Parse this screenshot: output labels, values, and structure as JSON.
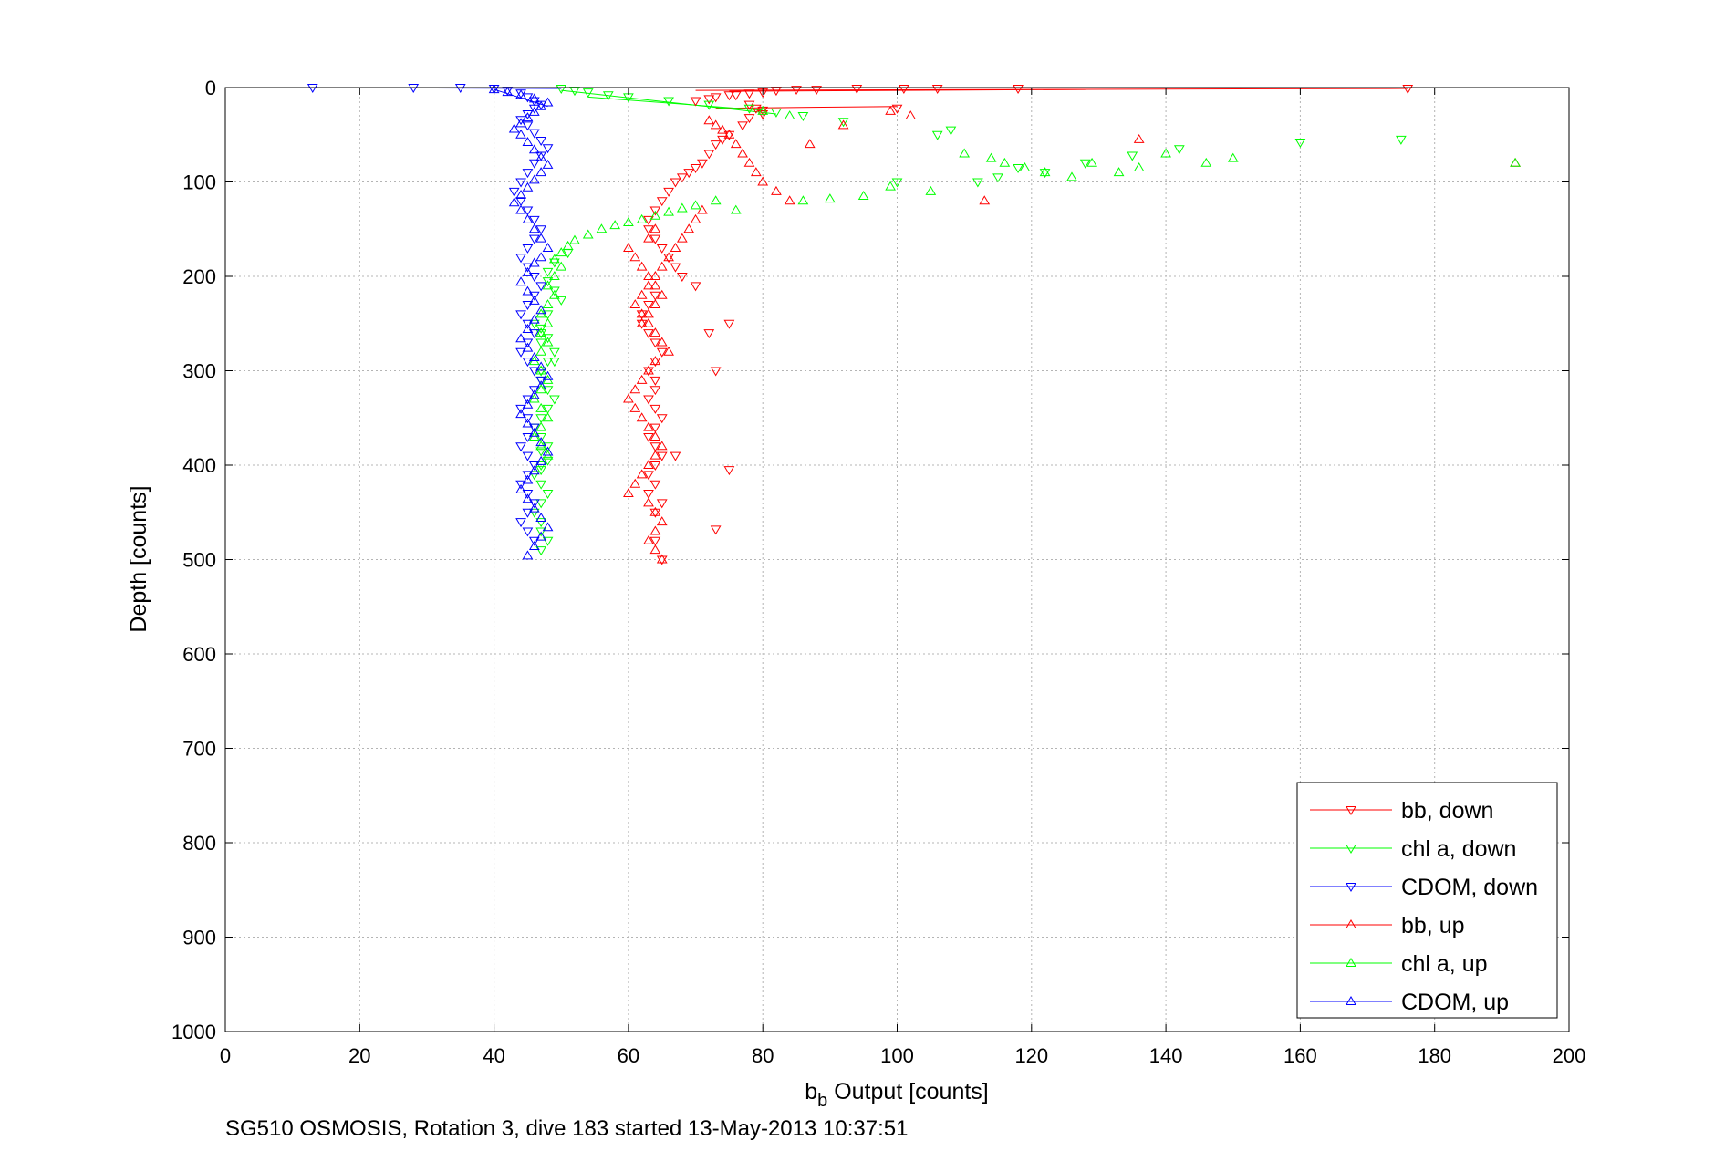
{
  "chart_data": {
    "type": "scatter",
    "title": "",
    "xlabel_base": "b",
    "xlabel_sub": "b",
    "xlabel_rest": " Output [counts]",
    "ylabel": "Depth [counts]",
    "caption": "SG510 OSMOSIS, Rotation 3, dive 183 started 13-May-2013 10:37:51",
    "xlim": [
      0,
      200
    ],
    "ylim": [
      0,
      1000
    ],
    "y_reversed": true,
    "grid": true,
    "x_ticks": [
      "0",
      "20",
      "40",
      "60",
      "80",
      "100",
      "120",
      "140",
      "160",
      "180",
      "200"
    ],
    "y_ticks": [
      "0",
      "100",
      "200",
      "300",
      "400",
      "500",
      "600",
      "700",
      "800",
      "900",
      "1000"
    ],
    "legend_position": "bottom-right",
    "series": [
      {
        "name": "bb, down",
        "color": "#ff0000",
        "marker": "triangle-down",
        "x": [
          176,
          118,
          106,
          101,
          94,
          88,
          85,
          82,
          80,
          78,
          76,
          75,
          73,
          72,
          70,
          78,
          79,
          80,
          100,
          80,
          78,
          77,
          75,
          74,
          73,
          72,
          71,
          70,
          69,
          68,
          67,
          66,
          65,
          64,
          63,
          63,
          64,
          65,
          66,
          67,
          68,
          70,
          64,
          63,
          62,
          62,
          63,
          64,
          65,
          64,
          63,
          75,
          72,
          64,
          64,
          63,
          64,
          73,
          65,
          64,
          63,
          64,
          65,
          64,
          63,
          67,
          64,
          63,
          75,
          65,
          64,
          73,
          64,
          65
        ],
        "y": [
          1,
          1,
          1,
          1,
          1,
          2,
          2,
          3,
          5,
          6,
          8,
          8,
          10,
          12,
          14,
          18,
          22,
          24,
          22,
          28,
          32,
          40,
          50,
          55,
          60,
          70,
          80,
          85,
          90,
          95,
          100,
          110,
          120,
          130,
          140,
          150,
          160,
          170,
          180,
          190,
          200,
          210,
          220,
          230,
          240,
          250,
          260,
          270,
          280,
          290,
          300,
          250,
          260,
          310,
          320,
          330,
          340,
          300,
          350,
          360,
          370,
          380,
          390,
          400,
          410,
          390,
          420,
          430,
          405,
          440,
          450,
          468,
          480,
          500
        ]
      },
      {
        "name": "chl a, down",
        "color": "#00ff00",
        "marker": "triangle-down",
        "x": [
          175,
          160,
          142,
          135,
          128,
          122,
          118,
          115,
          112,
          108,
          106,
          100,
          92,
          86,
          82,
          78,
          72,
          66,
          60,
          57,
          54,
          52,
          50,
          51,
          49,
          48,
          48,
          49,
          50,
          48,
          47,
          48,
          49,
          48,
          47,
          47,
          48,
          49,
          48,
          47,
          46,
          47,
          48,
          49,
          47,
          47,
          46,
          47,
          48,
          47,
          46,
          47,
          47,
          48,
          47,
          46,
          47,
          47,
          47,
          48,
          47
        ],
        "y": [
          55,
          58,
          65,
          72,
          80,
          90,
          85,
          95,
          100,
          45,
          50,
          100,
          36,
          30,
          26,
          22,
          18,
          14,
          10,
          8,
          5,
          3,
          1,
          175,
          185,
          195,
          205,
          215,
          225,
          240,
          255,
          265,
          280,
          290,
          300,
          310,
          320,
          330,
          340,
          350,
          360,
          370,
          380,
          290,
          300,
          400,
          410,
          420,
          430,
          440,
          450,
          460,
          470,
          480,
          490,
          250,
          260,
          270,
          405,
          395,
          385
        ]
      },
      {
        "name": "CDOM, down",
        "color": "#0000ff",
        "marker": "triangle-down",
        "x": [
          13,
          28,
          35,
          40,
          42,
          44,
          45,
          46,
          47,
          46,
          45,
          44,
          45,
          46,
          47,
          48,
          47,
          46,
          45,
          44,
          43,
          44,
          45,
          46,
          47,
          46,
          45,
          44,
          45,
          46,
          47,
          46,
          45,
          44,
          45,
          46,
          45,
          44,
          45,
          46,
          47,
          46,
          45,
          44,
          45,
          46,
          45,
          44,
          45,
          46,
          45,
          44,
          45,
          46,
          45,
          44,
          45,
          46
        ],
        "y": [
          0,
          0,
          0,
          1,
          3,
          6,
          10,
          14,
          18,
          22,
          28,
          34,
          40,
          48,
          56,
          64,
          72,
          80,
          90,
          100,
          110,
          120,
          130,
          140,
          150,
          160,
          170,
          180,
          190,
          200,
          210,
          220,
          230,
          240,
          250,
          260,
          270,
          280,
          290,
          300,
          310,
          320,
          330,
          340,
          350,
          360,
          370,
          380,
          390,
          400,
          410,
          420,
          430,
          440,
          450,
          460,
          470,
          480
        ]
      },
      {
        "name": "bb, up",
        "color": "#ff0000",
        "marker": "triangle-up",
        "x": [
          192,
          136,
          113,
          102,
          99,
          92,
          87,
          84,
          82,
          80,
          79,
          78,
          77,
          76,
          75,
          74,
          73,
          72,
          71,
          70,
          69,
          68,
          67,
          66,
          65,
          64,
          63,
          62,
          61,
          62,
          63,
          64,
          65,
          66,
          64,
          63,
          62,
          61,
          60,
          61,
          62,
          63,
          64,
          65,
          64,
          63,
          62,
          61,
          60,
          63,
          64,
          65,
          64,
          63,
          64,
          65,
          64,
          63,
          60,
          61,
          62,
          63,
          64,
          65,
          64,
          63,
          62
        ],
        "y": [
          80,
          55,
          120,
          30,
          25,
          40,
          60,
          120,
          110,
          100,
          90,
          80,
          70,
          60,
          50,
          45,
          40,
          35,
          130,
          140,
          150,
          160,
          170,
          180,
          190,
          200,
          210,
          220,
          230,
          240,
          250,
          260,
          270,
          280,
          290,
          300,
          310,
          320,
          330,
          340,
          350,
          360,
          370,
          380,
          390,
          400,
          410,
          420,
          430,
          440,
          450,
          460,
          470,
          480,
          490,
          500,
          150,
          160,
          170,
          180,
          190,
          200,
          210,
          220,
          230,
          240,
          250
        ]
      },
      {
        "name": "chl a, up",
        "color": "#00ff00",
        "marker": "triangle-up",
        "x": [
          192,
          150,
          146,
          140,
          136,
          133,
          129,
          126,
          122,
          119,
          116,
          114,
          110,
          105,
          99,
          95,
          90,
          86,
          84,
          80,
          76,
          73,
          70,
          68,
          66,
          64,
          62,
          60,
          58,
          56,
          54,
          52,
          51,
          50,
          49,
          50,
          49,
          48,
          49,
          48,
          47,
          48,
          47,
          48,
          47,
          46,
          47,
          48,
          47,
          46,
          47,
          48,
          47,
          46,
          47,
          48
        ],
        "y": [
          80,
          75,
          80,
          70,
          85,
          90,
          80,
          95,
          90,
          85,
          80,
          75,
          70,
          110,
          105,
          115,
          118,
          120,
          30,
          25,
          130,
          120,
          125,
          128,
          132,
          136,
          140,
          143,
          146,
          150,
          156,
          162,
          168,
          175,
          182,
          190,
          200,
          210,
          220,
          230,
          240,
          250,
          260,
          270,
          280,
          290,
          300,
          310,
          320,
          330,
          340,
          350,
          360,
          370,
          380,
          390
        ]
      },
      {
        "name": "CDOM, up",
        "color": "#0000ff",
        "marker": "triangle-up",
        "x": [
          40,
          42,
          44,
          46,
          48,
          47,
          46,
          45,
          44,
          43,
          44,
          45,
          46,
          47,
          48,
          47,
          46,
          45,
          44,
          43,
          44,
          45,
          46,
          47,
          48,
          47,
          46,
          45,
          44,
          45,
          46,
          47,
          46,
          45,
          44,
          45,
          46,
          47,
          48,
          47,
          46,
          45,
          44,
          45,
          46,
          47,
          48,
          47,
          46,
          45,
          44,
          45,
          46,
          47,
          48,
          47,
          46,
          45
        ],
        "y": [
          2,
          5,
          8,
          12,
          16,
          20,
          26,
          32,
          38,
          44,
          50,
          58,
          66,
          74,
          82,
          90,
          98,
          106,
          114,
          122,
          130,
          140,
          150,
          160,
          170,
          180,
          186,
          196,
          206,
          216,
          226,
          236,
          246,
          256,
          266,
          276,
          286,
          296,
          306,
          316,
          326,
          336,
          346,
          356,
          366,
          376,
          386,
          396,
          406,
          416,
          426,
          436,
          446,
          456,
          466,
          476,
          486,
          496
        ]
      }
    ],
    "surface_lines": [
      {
        "color": "#ff0000",
        "x": [
          70,
          176
        ],
        "y": [
          3,
          1
        ]
      },
      {
        "color": "#ff0000",
        "x": [
          75,
          128
        ],
        "y": [
          4,
          2
        ]
      },
      {
        "color": "#ff0000",
        "x": [
          73,
          100
        ],
        "y": [
          22,
          20
        ]
      },
      {
        "color": "#00ff00",
        "x": [
          50,
          82
        ],
        "y": [
          3,
          28
        ]
      },
      {
        "color": "#00ff00",
        "x": [
          54,
          80
        ],
        "y": [
          10,
          24
        ]
      },
      {
        "color": "#0000ff",
        "x": [
          13,
          50
        ],
        "y": [
          0,
          1
        ]
      },
      {
        "color": "#0000ff",
        "x": [
          40,
          48
        ],
        "y": [
          2,
          20
        ]
      }
    ]
  }
}
